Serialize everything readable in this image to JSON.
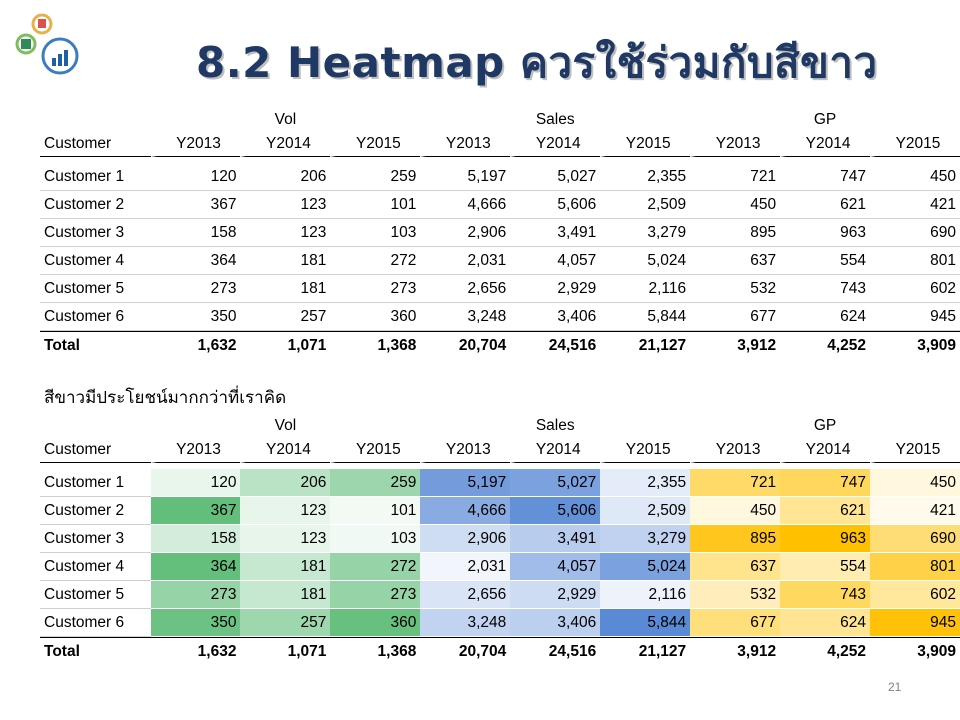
{
  "title": "8.2 Heatmap ควรใช้ร่วมกับสีขาว",
  "subtitle": "สีขาวมีประโยชน์มากกว่าที่เราคิด",
  "page_number": "21",
  "groups": [
    "Vol",
    "Sales",
    "GP"
  ],
  "col_header_customer": "Customer",
  "years": [
    "Y2013",
    "Y2014",
    "Y2015",
    "Y2013",
    "Y2014",
    "Y2015",
    "Y2013",
    "Y2014",
    "Y2015"
  ],
  "rows": [
    {
      "name": "Customer 1",
      "values": [
        "120",
        "206",
        "259",
        "5,197",
        "5,027",
        "2,355",
        "721",
        "747",
        "450"
      ]
    },
    {
      "name": "Customer 2",
      "values": [
        "367",
        "123",
        "101",
        "4,666",
        "5,606",
        "2,509",
        "450",
        "621",
        "421"
      ]
    },
    {
      "name": "Customer 3",
      "values": [
        "158",
        "123",
        "103",
        "2,906",
        "3,491",
        "3,279",
        "895",
        "963",
        "690"
      ]
    },
    {
      "name": "Customer 4",
      "values": [
        "364",
        "181",
        "272",
        "2,031",
        "4,057",
        "5,024",
        "637",
        "554",
        "801"
      ]
    },
    {
      "name": "Customer 5",
      "values": [
        "273",
        "181",
        "273",
        "2,656",
        "2,929",
        "2,116",
        "532",
        "743",
        "602"
      ]
    },
    {
      "name": "Customer 6",
      "values": [
        "350",
        "257",
        "360",
        "3,248",
        "3,406",
        "5,844",
        "677",
        "624",
        "945"
      ]
    }
  ],
  "total": {
    "name": "Total",
    "values": [
      "1,632",
      "1,071",
      "1,368",
      "20,704",
      "24,516",
      "21,127",
      "3,912",
      "4,252",
      "3,909"
    ]
  },
  "heat_colors": {
    "Vol": "#63be7b",
    "Sales": "#5a8ad6",
    "GP": "#ffc000",
    "low": "#ffffff"
  }
}
